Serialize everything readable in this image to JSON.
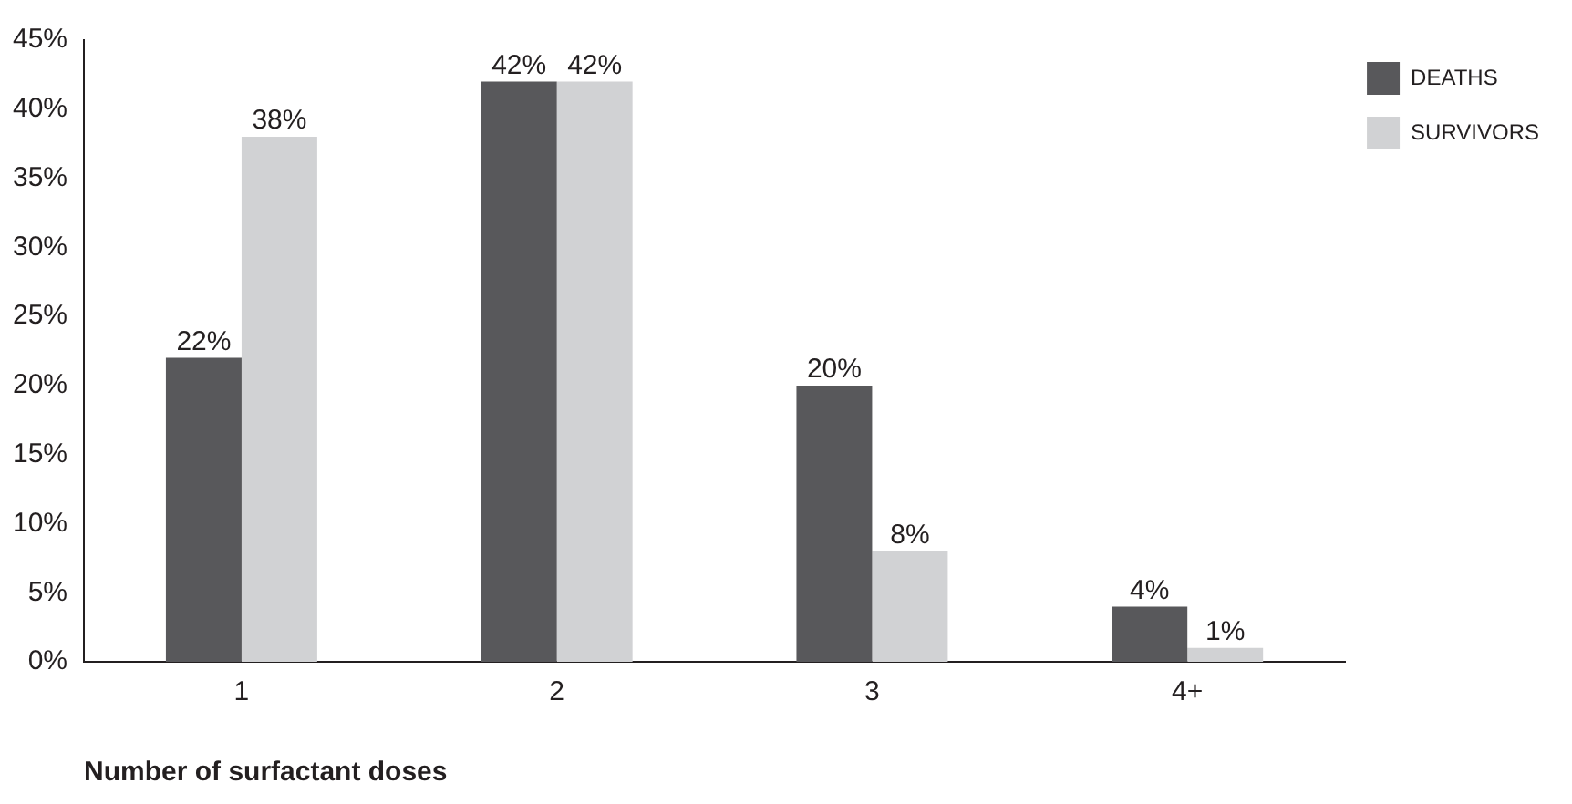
{
  "chart_data": {
    "type": "bar",
    "xlabel": "Number of surfactant doses",
    "categories": [
      "1",
      "2",
      "3",
      "4+"
    ],
    "series": [
      {
        "name": "DEATHS",
        "color": "#58585b",
        "values": [
          22,
          42,
          20,
          4
        ],
        "value_labels": [
          "22%",
          "42%",
          "20%",
          "4%"
        ]
      },
      {
        "name": "SURVIVORS",
        "color": "#d1d2d4",
        "values": [
          38,
          42,
          8,
          1
        ],
        "value_labels": [
          "38%",
          "42%",
          "8%",
          "1%"
        ]
      }
    ],
    "ylim": [
      0,
      45
    ],
    "yticks": [
      {
        "value": 0,
        "label": "0%"
      },
      {
        "value": 5,
        "label": "5%"
      },
      {
        "value": 10,
        "label": "10%"
      },
      {
        "value": 15,
        "label": "15%"
      },
      {
        "value": 20,
        "label": "20%"
      },
      {
        "value": 25,
        "label": "25%"
      },
      {
        "value": 30,
        "label": "30%"
      },
      {
        "value": 35,
        "label": "35%"
      },
      {
        "value": 40,
        "label": "40%"
      },
      {
        "value": 45,
        "label": "45%"
      }
    ],
    "grid": false,
    "legend": "top right"
  }
}
